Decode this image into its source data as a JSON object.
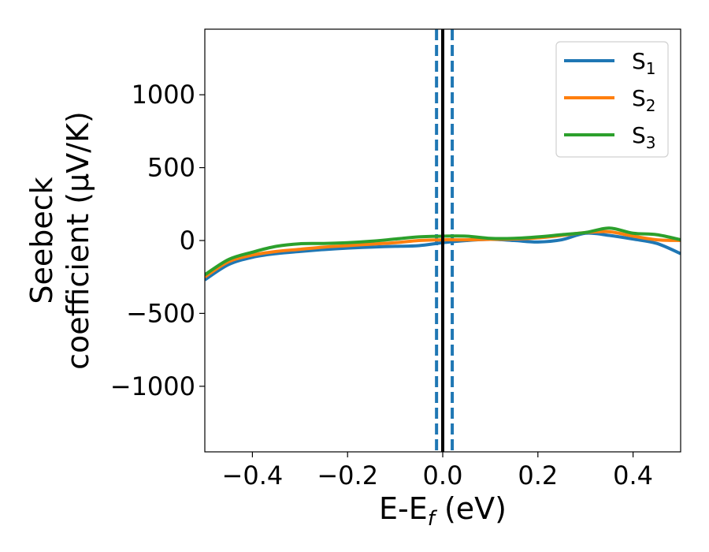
{
  "chart_data": {
    "type": "line",
    "xlabel": "E-E",
    "xlabel_sub": "f",
    "xlabel_unit": " (eV)",
    "ylabel_line1": "Seebeck",
    "ylabel_line2": "coefficient  (μV/K)",
    "xlim": [
      -0.5,
      0.5
    ],
    "ylim": [
      -1450,
      1450
    ],
    "xticks": [
      -0.4,
      -0.2,
      0.0,
      0.2,
      0.4
    ],
    "xtick_labels": [
      "−0.4",
      "−0.2",
      "0.0",
      "0.2",
      "0.4"
    ],
    "yticks": [
      -1000,
      -500,
      0,
      500,
      1000
    ],
    "ytick_labels": [
      "−1000",
      "−500",
      "0",
      "500",
      "1000"
    ],
    "legend_position": "top-right",
    "vlines": [
      {
        "x": 0.0,
        "style": "solid",
        "color": "#000000"
      },
      {
        "x": -0.013,
        "style": "dashed",
        "color": "#1f77b4"
      },
      {
        "x": 0.02,
        "style": "dashed",
        "color": "#1f77b4"
      }
    ],
    "series": [
      {
        "name": "S",
        "name_sub": "1",
        "color": "#1f77b4",
        "x": [
          -0.5,
          -0.45,
          -0.4,
          -0.35,
          -0.3,
          -0.25,
          -0.2,
          -0.15,
          -0.1,
          -0.05,
          0.0,
          0.05,
          0.1,
          0.15,
          0.2,
          0.25,
          0.3,
          0.35,
          0.4,
          0.45,
          0.5
        ],
        "y": [
          -270,
          -165,
          -115,
          -90,
          -75,
          -62,
          -52,
          -45,
          -40,
          -35,
          -15,
          0,
          8,
          0,
          -10,
          5,
          50,
          35,
          10,
          -20,
          -90
        ]
      },
      {
        "name": "S",
        "name_sub": "2",
        "color": "#ff7f0e",
        "x": [
          -0.5,
          -0.45,
          -0.4,
          -0.35,
          -0.3,
          -0.25,
          -0.2,
          -0.15,
          -0.1,
          -0.05,
          0.0,
          0.05,
          0.1,
          0.15,
          0.2,
          0.25,
          0.3,
          0.35,
          0.4,
          0.45,
          0.5
        ],
        "y": [
          -250,
          -145,
          -100,
          -75,
          -60,
          -45,
          -35,
          -25,
          -15,
          0,
          5,
          5,
          8,
          10,
          18,
          35,
          55,
          60,
          30,
          5,
          0
        ]
      },
      {
        "name": "S",
        "name_sub": "3",
        "color": "#2ca02c",
        "x": [
          -0.5,
          -0.45,
          -0.4,
          -0.35,
          -0.3,
          -0.25,
          -0.2,
          -0.15,
          -0.1,
          -0.05,
          0.0,
          0.05,
          0.1,
          0.15,
          0.2,
          0.25,
          0.3,
          0.35,
          0.4,
          0.45,
          0.5
        ],
        "y": [
          -235,
          -130,
          -80,
          -40,
          -22,
          -20,
          -15,
          -5,
          10,
          25,
          30,
          30,
          15,
          15,
          25,
          40,
          55,
          85,
          50,
          40,
          5
        ]
      }
    ]
  }
}
